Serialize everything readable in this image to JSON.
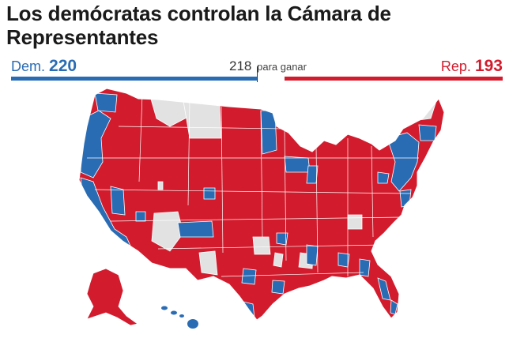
{
  "title": "Los demócratas controlan la Cámara de Representantes",
  "tally": {
    "dem_label": "Dem.",
    "dem_seats": "220",
    "majority_number": "218",
    "majority_text": "para ganar",
    "rep_label": "Rep.",
    "rep_seats": "193"
  },
  "colors": {
    "democrat": "#2a6cb4",
    "republican": "#d21c2d",
    "undecided": "#e2e2e2",
    "border": "#ffffff"
  },
  "map": {
    "subject": "Mapa de distritos de la Cámara de Representantes de EE. UU."
  }
}
